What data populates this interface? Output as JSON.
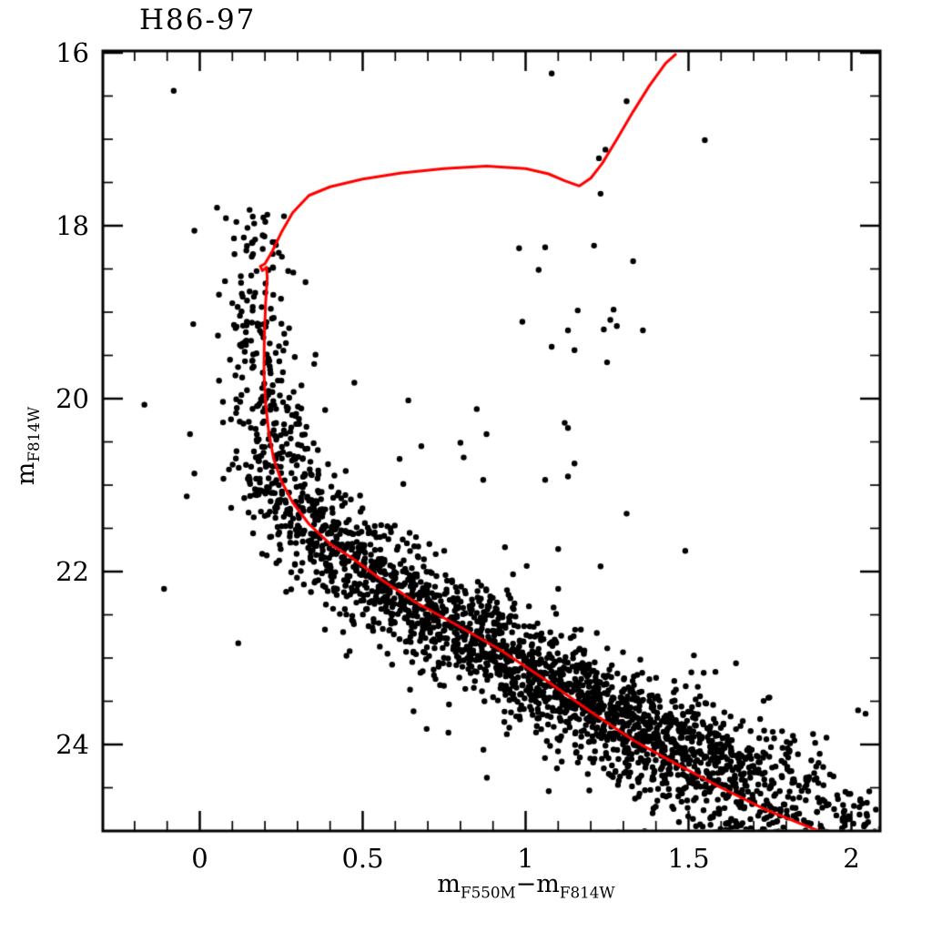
{
  "title": "H86-97",
  "axes": {
    "x": {
      "label_base1": "m",
      "label_sub1": "F550M",
      "label_minus": "−",
      "label_base2": "m",
      "label_sub2": "F814W",
      "ticks": [
        {
          "v": 0,
          "t": "0"
        },
        {
          "v": 0.5,
          "t": "0.5"
        },
        {
          "v": 1,
          "t": "1"
        },
        {
          "v": 1.5,
          "t": "1.5"
        },
        {
          "v": 2,
          "t": "2"
        }
      ],
      "minor_step": 0.1,
      "minor_range": [
        -0.2,
        2.0
      ],
      "range": [
        -0.3,
        2.086
      ]
    },
    "y": {
      "label_base": "m",
      "label_sub": "F814W",
      "ticks": [
        {
          "v": 16,
          "t": "16"
        },
        {
          "v": 18,
          "t": "18"
        },
        {
          "v": 20,
          "t": "20"
        },
        {
          "v": 22,
          "t": "22"
        },
        {
          "v": 24,
          "t": "24"
        }
      ],
      "minor_step": 0.5,
      "minor_range": [
        16.5,
        24.5
      ],
      "range": [
        16,
        25.0
      ],
      "inverted": true
    }
  },
  "chart_data": {
    "type": "scatter",
    "title": "H86-97",
    "xlabel": "mF550M − mF814W",
    "ylabel": "mF814W",
    "xlim": [
      -0.3,
      2.086
    ],
    "ylim": [
      25.0,
      16.0
    ],
    "y_axis_inverted": true,
    "grid": false,
    "legend": "none",
    "marker_color": "#000000",
    "isochrone_color": "#ff0000",
    "isochrone_comment": "red stellar isochrone polyline, pairs of [color, magnitude] from RGB tip to faint MS",
    "isochrone": [
      [
        1.46,
        16.02
      ],
      [
        1.43,
        16.12
      ],
      [
        1.38,
        16.38
      ],
      [
        1.33,
        16.68
      ],
      [
        1.28,
        17.0
      ],
      [
        1.235,
        17.28
      ],
      [
        1.2,
        17.45
      ],
      [
        1.165,
        17.54
      ],
      [
        1.12,
        17.48
      ],
      [
        1.07,
        17.4
      ],
      [
        1.0,
        17.34
      ],
      [
        0.88,
        17.31
      ],
      [
        0.75,
        17.34
      ],
      [
        0.62,
        17.39
      ],
      [
        0.5,
        17.46
      ],
      [
        0.4,
        17.55
      ],
      [
        0.335,
        17.65
      ],
      [
        0.285,
        17.85
      ],
      [
        0.25,
        18.08
      ],
      [
        0.222,
        18.3
      ],
      [
        0.2,
        18.44
      ],
      [
        0.186,
        18.47
      ],
      [
        0.192,
        18.52
      ],
      [
        0.205,
        18.48
      ],
      [
        0.207,
        18.6
      ],
      [
        0.202,
        18.9
      ],
      [
        0.198,
        19.3
      ],
      [
        0.197,
        19.7
      ],
      [
        0.202,
        20.05
      ],
      [
        0.212,
        20.4
      ],
      [
        0.227,
        20.7
      ],
      [
        0.25,
        20.95
      ],
      [
        0.285,
        21.2
      ],
      [
        0.335,
        21.45
      ],
      [
        0.4,
        21.68
      ],
      [
        0.47,
        21.85
      ],
      [
        0.56,
        22.1
      ],
      [
        0.66,
        22.35
      ],
      [
        0.78,
        22.6
      ],
      [
        0.92,
        22.9
      ],
      [
        1.06,
        23.25
      ],
      [
        1.2,
        23.62
      ],
      [
        1.33,
        23.95
      ],
      [
        1.46,
        24.22
      ],
      [
        1.6,
        24.5
      ],
      [
        1.74,
        24.76
      ],
      [
        1.88,
        24.97
      ],
      [
        1.95,
        25.06
      ]
    ],
    "scatter_model": {
      "comment": "main-sequence star band: ridge [mag,color] + gaussian color spread per magnitude bin; deterministic seeded generation",
      "seed": 42,
      "dot_radius_px": 3.2,
      "ridge": [
        [
          17.85,
          0.17
        ],
        [
          18.6,
          0.175
        ],
        [
          19.3,
          0.185
        ],
        [
          19.9,
          0.195
        ],
        [
          20.4,
          0.212
        ],
        [
          20.9,
          0.248
        ],
        [
          21.2,
          0.3
        ],
        [
          21.5,
          0.37
        ],
        [
          21.8,
          0.45
        ],
        [
          22.1,
          0.55
        ],
        [
          22.5,
          0.7
        ],
        [
          22.9,
          0.88
        ],
        [
          23.3,
          1.08
        ],
        [
          23.7,
          1.28
        ],
        [
          24.1,
          1.46
        ],
        [
          24.5,
          1.63
        ],
        [
          24.9,
          1.8
        ],
        [
          25.25,
          1.95
        ]
      ],
      "bins": [
        {
          "m0": 17.85,
          "m1": 19.0,
          "count": 55,
          "sigma": 0.055,
          "skew": 0.0
        },
        {
          "m0": 19.0,
          "m1": 20.0,
          "count": 85,
          "sigma": 0.06,
          "skew": 0.0
        },
        {
          "m0": 20.0,
          "m1": 21.0,
          "count": 140,
          "sigma": 0.07,
          "skew": 0.03
        },
        {
          "m0": 21.0,
          "m1": 21.5,
          "count": 135,
          "sigma": 0.09,
          "skew": 0.05
        },
        {
          "m0": 21.5,
          "m1": 22.0,
          "count": 205,
          "sigma": 0.1,
          "skew": 0.06
        },
        {
          "m0": 22.0,
          "m1": 22.5,
          "count": 270,
          "sigma": 0.115,
          "skew": 0.08
        },
        {
          "m0": 22.5,
          "m1": 23.0,
          "count": 340,
          "sigma": 0.125,
          "skew": 0.09
        },
        {
          "m0": 23.0,
          "m1": 23.5,
          "count": 400,
          "sigma": 0.135,
          "skew": 0.1
        },
        {
          "m0": 23.5,
          "m1": 24.0,
          "count": 420,
          "sigma": 0.15,
          "skew": 0.11
        },
        {
          "m0": 24.0,
          "m1": 24.5,
          "count": 360,
          "sigma": 0.17,
          "skew": 0.12
        },
        {
          "m0": 24.5,
          "m1": 25.25,
          "count": 330,
          "sigma": 0.19,
          "skew": 0.12
        }
      ],
      "outlier_frac": 0.06,
      "outlier_scale": 2.4,
      "mag_jitter": 0.1,
      "field_stars_comment": "individually visible stars [color, mag] away from the main band",
      "field_stars": [
        [
          -0.08,
          16.44
        ],
        [
          1.08,
          16.24
        ],
        [
          1.31,
          16.56
        ],
        [
          1.55,
          17.01
        ],
        [
          1.245,
          17.12
        ],
        [
          1.225,
          17.22
        ],
        [
          1.23,
          17.63
        ],
        [
          0.98,
          18.26
        ],
        [
          1.06,
          18.25
        ],
        [
          1.21,
          18.23
        ],
        [
          1.04,
          18.51
        ],
        [
          1.33,
          18.41
        ],
        [
          1.16,
          18.98
        ],
        [
          1.27,
          18.97
        ],
        [
          1.26,
          19.09
        ],
        [
          1.28,
          19.16
        ],
        [
          1.24,
          19.2
        ],
        [
          0.99,
          19.11
        ],
        [
          1.13,
          19.21
        ],
        [
          1.36,
          19.21
        ],
        [
          1.08,
          19.4
        ],
        [
          1.15,
          19.44
        ],
        [
          1.25,
          19.58
        ],
        [
          1.12,
          20.28
        ],
        [
          1.13,
          20.34
        ],
        [
          1.15,
          20.75
        ],
        [
          1.13,
          20.9
        ],
        [
          1.06,
          20.94
        ],
        [
          1.31,
          21.33
        ],
        [
          1.1,
          21.74
        ],
        [
          1.49,
          21.76
        ],
        [
          1.23,
          21.94
        ],
        [
          1.1,
          22.2
        ],
        [
          -0.17,
          20.07
        ],
        [
          -0.03,
          20.41
        ],
        [
          -0.04,
          21.13
        ],
        [
          0.85,
          20.12
        ],
        [
          0.88,
          20.41
        ],
        [
          0.8,
          20.51
        ],
        [
          0.87,
          20.94
        ],
        [
          0.81,
          20.68
        ],
        [
          0.68,
          20.55
        ],
        [
          0.64,
          20.02
        ],
        [
          0.44,
          22.7
        ],
        [
          0.46,
          22.92
        ],
        [
          0.53,
          22.65
        ]
      ]
    }
  }
}
